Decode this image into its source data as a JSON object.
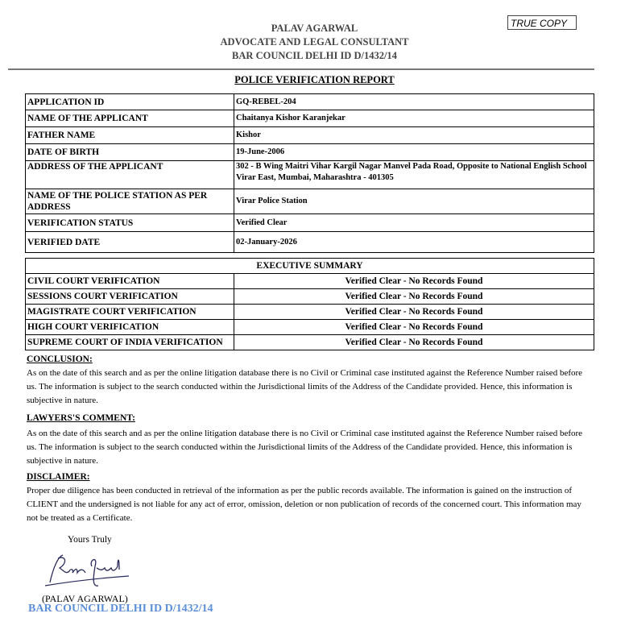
{
  "header": {
    "name": "PALAV AGARWAL",
    "title": "ADVOCATE AND LEGAL CONSULTANT",
    "bar_id": "BAR COUNCIL DELHI ID D/1432/14",
    "stamp": "TRUE COPY"
  },
  "report_title": "POLICE VERIFICATION REPORT",
  "details": [
    {
      "label": "APPLICATION ID",
      "value": "GQ-REBEL-204"
    },
    {
      "label": "NAME OF THE APPLICANT",
      "value": "Chaitanya Kishor Karanjekar"
    },
    {
      "label": "FATHER NAME",
      "value": "Kishor"
    },
    {
      "label": "DATE OF BIRTH",
      "value": "19-June-2006"
    },
    {
      "label": "ADDRESS OF THE APPLICANT",
      "value": "302 - B Wing Maitri Vihar Kargil Nagar Manvel Pada Road,  Opposite to National English School Virar East, Mumbai, Maharashtra - 401305"
    },
    {
      "label": "NAME OF THE POLICE STATION AS PER ADDRESS",
      "value": "Virar Police Station"
    },
    {
      "label": "VERIFICATION STATUS",
      "value": "Verified Clear"
    },
    {
      "label": "VERIFIED DATE",
      "value": "02-January-2026"
    }
  ],
  "summary": {
    "heading": "EXECUTIVE SUMMARY",
    "rows": [
      {
        "label": "CIVIL COURT VERIFICATION",
        "value": "Verified Clear - No Records Found"
      },
      {
        "label": "SESSIONS COURT VERIFICATION",
        "value": "Verified Clear - No Records Found"
      },
      {
        "label": "MAGISTRATE COURT VERIFICATION",
        "value": "Verified Clear - No Records Found"
      },
      {
        "label": "HIGH COURT VERIFICATION",
        "value": "Verified Clear - No Records Found"
      },
      {
        "label": "SUPREME COURT OF INDIA VERIFICATION",
        "value": "Verified Clear - No Records Found"
      }
    ]
  },
  "conclusion": {
    "heading": "CONCLUSION:",
    "text": "As on the date of this search and as per the online litigation database there is no Civil or Criminal case instituted against the Reference Number raised before us. The information is subject to the search conducted within the Jurisdictional limits of the Address of the Candidate provided. Hence, this information is subjective in nature."
  },
  "comment": {
    "heading": "LAWYERS'S COMMENT:",
    "text": "As on the date of this search and as per the online litigation database there is no Civil or Criminal case instituted against the Reference Number raised before us. The information is subject to the search conducted within the Jurisdictional limits of the Address of the Candidate provided. Hence, this information is subjective in nature."
  },
  "disclaimer": {
    "heading": "DISCLAIMER:",
    "text": "Proper due diligence has been conducted in retrieval of the information as per the public records available. The information is gained on the instruction of CLIENT and the undersigned is not liable for any act of error, omission, deletion or non publication of records of the concerned court. This information may not be treated as a Certificate."
  },
  "signoff": {
    "closing": "Yours Truly",
    "signature": "Palav Agarwal",
    "name": "(PALAV AGARWAL)",
    "bar_id": "BAR COUNCIL DELHI ID D/1432/14"
  },
  "colors": {
    "bar_id_footer": "#5b8fd9",
    "signature_ink": "#2a2a5a"
  }
}
